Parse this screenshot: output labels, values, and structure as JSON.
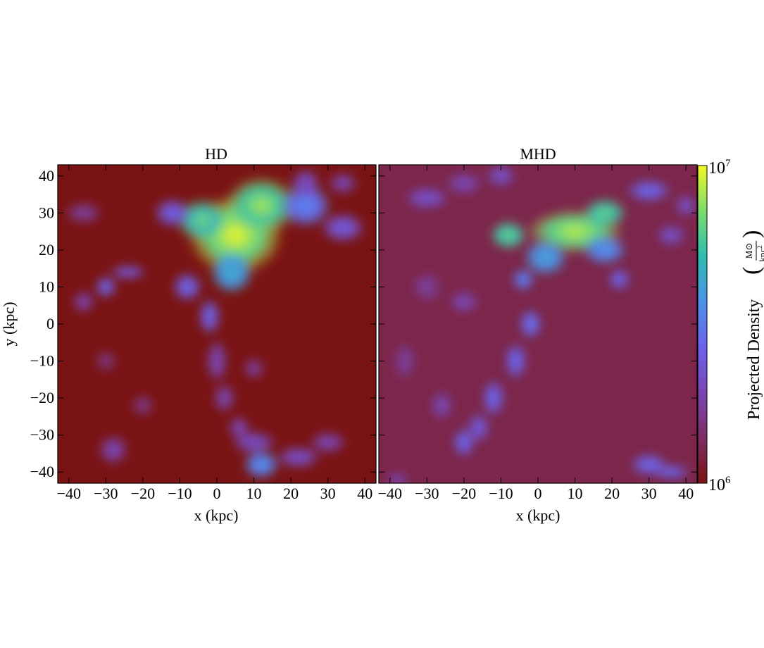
{
  "chart_data": {
    "type": "heatmap",
    "colormap": "plasma-like",
    "colorbar": {
      "label": "Projected Density",
      "unit_numerator": "M⊙",
      "unit_denominator": "kpc",
      "unit_denominator_exp": "2",
      "min_label_base": "10",
      "min_label_exp": "6",
      "max_label_base": "10",
      "max_label_exp": "7",
      "range": [
        1000000,
        10000000
      ],
      "scale": "log",
      "stops": [
        "#7a1414",
        "#7d2e62",
        "#7a46b4",
        "#6c63ec",
        "#4d92e8",
        "#2fbcb0",
        "#7ddc6a",
        "#f2f724"
      ]
    },
    "panels": [
      {
        "title": "HD",
        "xlabel": "x (kpc)",
        "ylabel": "y (kpc)",
        "xlim": [
          -43,
          43
        ],
        "ylim": [
          -43,
          43
        ],
        "xticks": [
          -40,
          -30,
          -20,
          -10,
          0,
          10,
          20,
          30,
          40
        ],
        "xtick_labels": [
          "−40",
          "−30",
          "−20",
          "−10",
          "0",
          "10",
          "20",
          "30",
          "40"
        ],
        "yticks": [
          -40,
          -30,
          -20,
          -10,
          0,
          10,
          20,
          30,
          40
        ],
        "ytick_labels": [
          "−40",
          "−30",
          "−20",
          "−10",
          "0",
          "10",
          "20",
          "30",
          "40"
        ],
        "background_level": 0.0,
        "features": [
          {
            "x": 5,
            "y": 24,
            "rx": 13,
            "ry": 11,
            "level": 1.0
          },
          {
            "x": 12,
            "y": 32,
            "rx": 10,
            "ry": 8,
            "level": 0.92
          },
          {
            "x": -4,
            "y": 28,
            "rx": 7,
            "ry": 6,
            "level": 0.85
          },
          {
            "x": 4,
            "y": 14,
            "rx": 6,
            "ry": 6,
            "level": 0.7
          },
          {
            "x": 24,
            "y": 32,
            "rx": 7,
            "ry": 6,
            "level": 0.55
          },
          {
            "x": 34,
            "y": 26,
            "rx": 6,
            "ry": 4,
            "level": 0.4
          },
          {
            "x": -12,
            "y": 30,
            "rx": 5,
            "ry": 4,
            "level": 0.42
          },
          {
            "x": -8,
            "y": 10,
            "rx": 4,
            "ry": 4,
            "level": 0.45
          },
          {
            "x": -24,
            "y": 14,
            "rx": 5,
            "ry": 2,
            "level": 0.4
          },
          {
            "x": -30,
            "y": 10,
            "rx": 3,
            "ry": 3,
            "level": 0.45
          },
          {
            "x": -36,
            "y": 6,
            "rx": 3,
            "ry": 3,
            "level": 0.3
          },
          {
            "x": -2,
            "y": 2,
            "rx": 3,
            "ry": 5,
            "level": 0.45
          },
          {
            "x": 0,
            "y": -10,
            "rx": 3,
            "ry": 6,
            "level": 0.3
          },
          {
            "x": 2,
            "y": -20,
            "rx": 3,
            "ry": 4,
            "level": 0.3
          },
          {
            "x": 6,
            "y": -28,
            "rx": 3,
            "ry": 3,
            "level": 0.32
          },
          {
            "x": 10,
            "y": -32,
            "rx": 6,
            "ry": 3,
            "level": 0.35
          },
          {
            "x": 12,
            "y": -38,
            "rx": 5,
            "ry": 4,
            "level": 0.6
          },
          {
            "x": 22,
            "y": -36,
            "rx": 6,
            "ry": 3,
            "level": 0.35
          },
          {
            "x": 30,
            "y": -32,
            "rx": 5,
            "ry": 3,
            "level": 0.3
          },
          {
            "x": -28,
            "y": -34,
            "rx": 4,
            "ry": 4,
            "level": 0.3
          },
          {
            "x": -20,
            "y": -22,
            "rx": 3,
            "ry": 3,
            "level": 0.22
          },
          {
            "x": -36,
            "y": 30,
            "rx": 5,
            "ry": 3,
            "level": 0.25
          },
          {
            "x": -30,
            "y": -10,
            "rx": 3,
            "ry": 3,
            "level": 0.2
          },
          {
            "x": 10,
            "y": -12,
            "rx": 3,
            "ry": 3,
            "level": 0.25
          },
          {
            "x": 24,
            "y": 38,
            "rx": 4,
            "ry": 4,
            "level": 0.35
          },
          {
            "x": 34,
            "y": 38,
            "rx": 4,
            "ry": 3,
            "level": 0.3
          }
        ]
      },
      {
        "title": "MHD",
        "xlabel": "x (kpc)",
        "ylabel": "",
        "xlim": [
          -43,
          43
        ],
        "ylim": [
          -43,
          43
        ],
        "xticks": [
          -40,
          -30,
          -20,
          -10,
          0,
          10,
          20,
          30,
          40
        ],
        "xtick_labels": [
          "−40",
          "−30",
          "−20",
          "−10",
          "0",
          "10",
          "20",
          "30",
          "40"
        ],
        "yticks": [
          -40,
          -30,
          -20,
          -10,
          0,
          10,
          20,
          30,
          40
        ],
        "ytick_labels": [],
        "background_level": 0.1,
        "features": [
          {
            "x": 10,
            "y": 25,
            "rx": 13,
            "ry": 6,
            "level": 0.95
          },
          {
            "x": -8,
            "y": 24,
            "rx": 5,
            "ry": 4,
            "level": 0.85
          },
          {
            "x": 18,
            "y": 30,
            "rx": 6,
            "ry": 4,
            "level": 0.85
          },
          {
            "x": 2,
            "y": 18,
            "rx": 6,
            "ry": 5,
            "level": 0.65
          },
          {
            "x": 18,
            "y": 20,
            "rx": 6,
            "ry": 4,
            "level": 0.6
          },
          {
            "x": -4,
            "y": 12,
            "rx": 3,
            "ry": 3,
            "level": 0.55
          },
          {
            "x": 22,
            "y": 12,
            "rx": 3,
            "ry": 3,
            "level": 0.45
          },
          {
            "x": 30,
            "y": 36,
            "rx": 6,
            "ry": 3,
            "level": 0.45
          },
          {
            "x": -30,
            "y": 34,
            "rx": 6,
            "ry": 3,
            "level": 0.35
          },
          {
            "x": -20,
            "y": 38,
            "rx": 5,
            "ry": 3,
            "level": 0.3
          },
          {
            "x": -10,
            "y": 40,
            "rx": 4,
            "ry": 3,
            "level": 0.35
          },
          {
            "x": -30,
            "y": 10,
            "rx": 4,
            "ry": 4,
            "level": 0.25
          },
          {
            "x": -20,
            "y": 6,
            "rx": 4,
            "ry": 3,
            "level": 0.3
          },
          {
            "x": -2,
            "y": 0,
            "rx": 3,
            "ry": 4,
            "level": 0.5
          },
          {
            "x": -6,
            "y": -10,
            "rx": 3,
            "ry": 5,
            "level": 0.45
          },
          {
            "x": -12,
            "y": -20,
            "rx": 3,
            "ry": 5,
            "level": 0.45
          },
          {
            "x": -16,
            "y": -28,
            "rx": 3,
            "ry": 4,
            "level": 0.4
          },
          {
            "x": -20,
            "y": -32,
            "rx": 3,
            "ry": 4,
            "level": 0.45
          },
          {
            "x": -26,
            "y": -22,
            "rx": 3,
            "ry": 4,
            "level": 0.3
          },
          {
            "x": -36,
            "y": -10,
            "rx": 3,
            "ry": 5,
            "level": 0.25
          },
          {
            "x": 30,
            "y": -38,
            "rx": 5,
            "ry": 3,
            "level": 0.45
          },
          {
            "x": 36,
            "y": -40,
            "rx": 5,
            "ry": 2,
            "level": 0.45
          },
          {
            "x": 36,
            "y": 24,
            "rx": 4,
            "ry": 3,
            "level": 0.35
          },
          {
            "x": 40,
            "y": 32,
            "rx": 3,
            "ry": 3,
            "level": 0.35
          },
          {
            "x": -38,
            "y": -42,
            "rx": 3,
            "ry": 2,
            "level": 0.3
          }
        ]
      }
    ]
  }
}
